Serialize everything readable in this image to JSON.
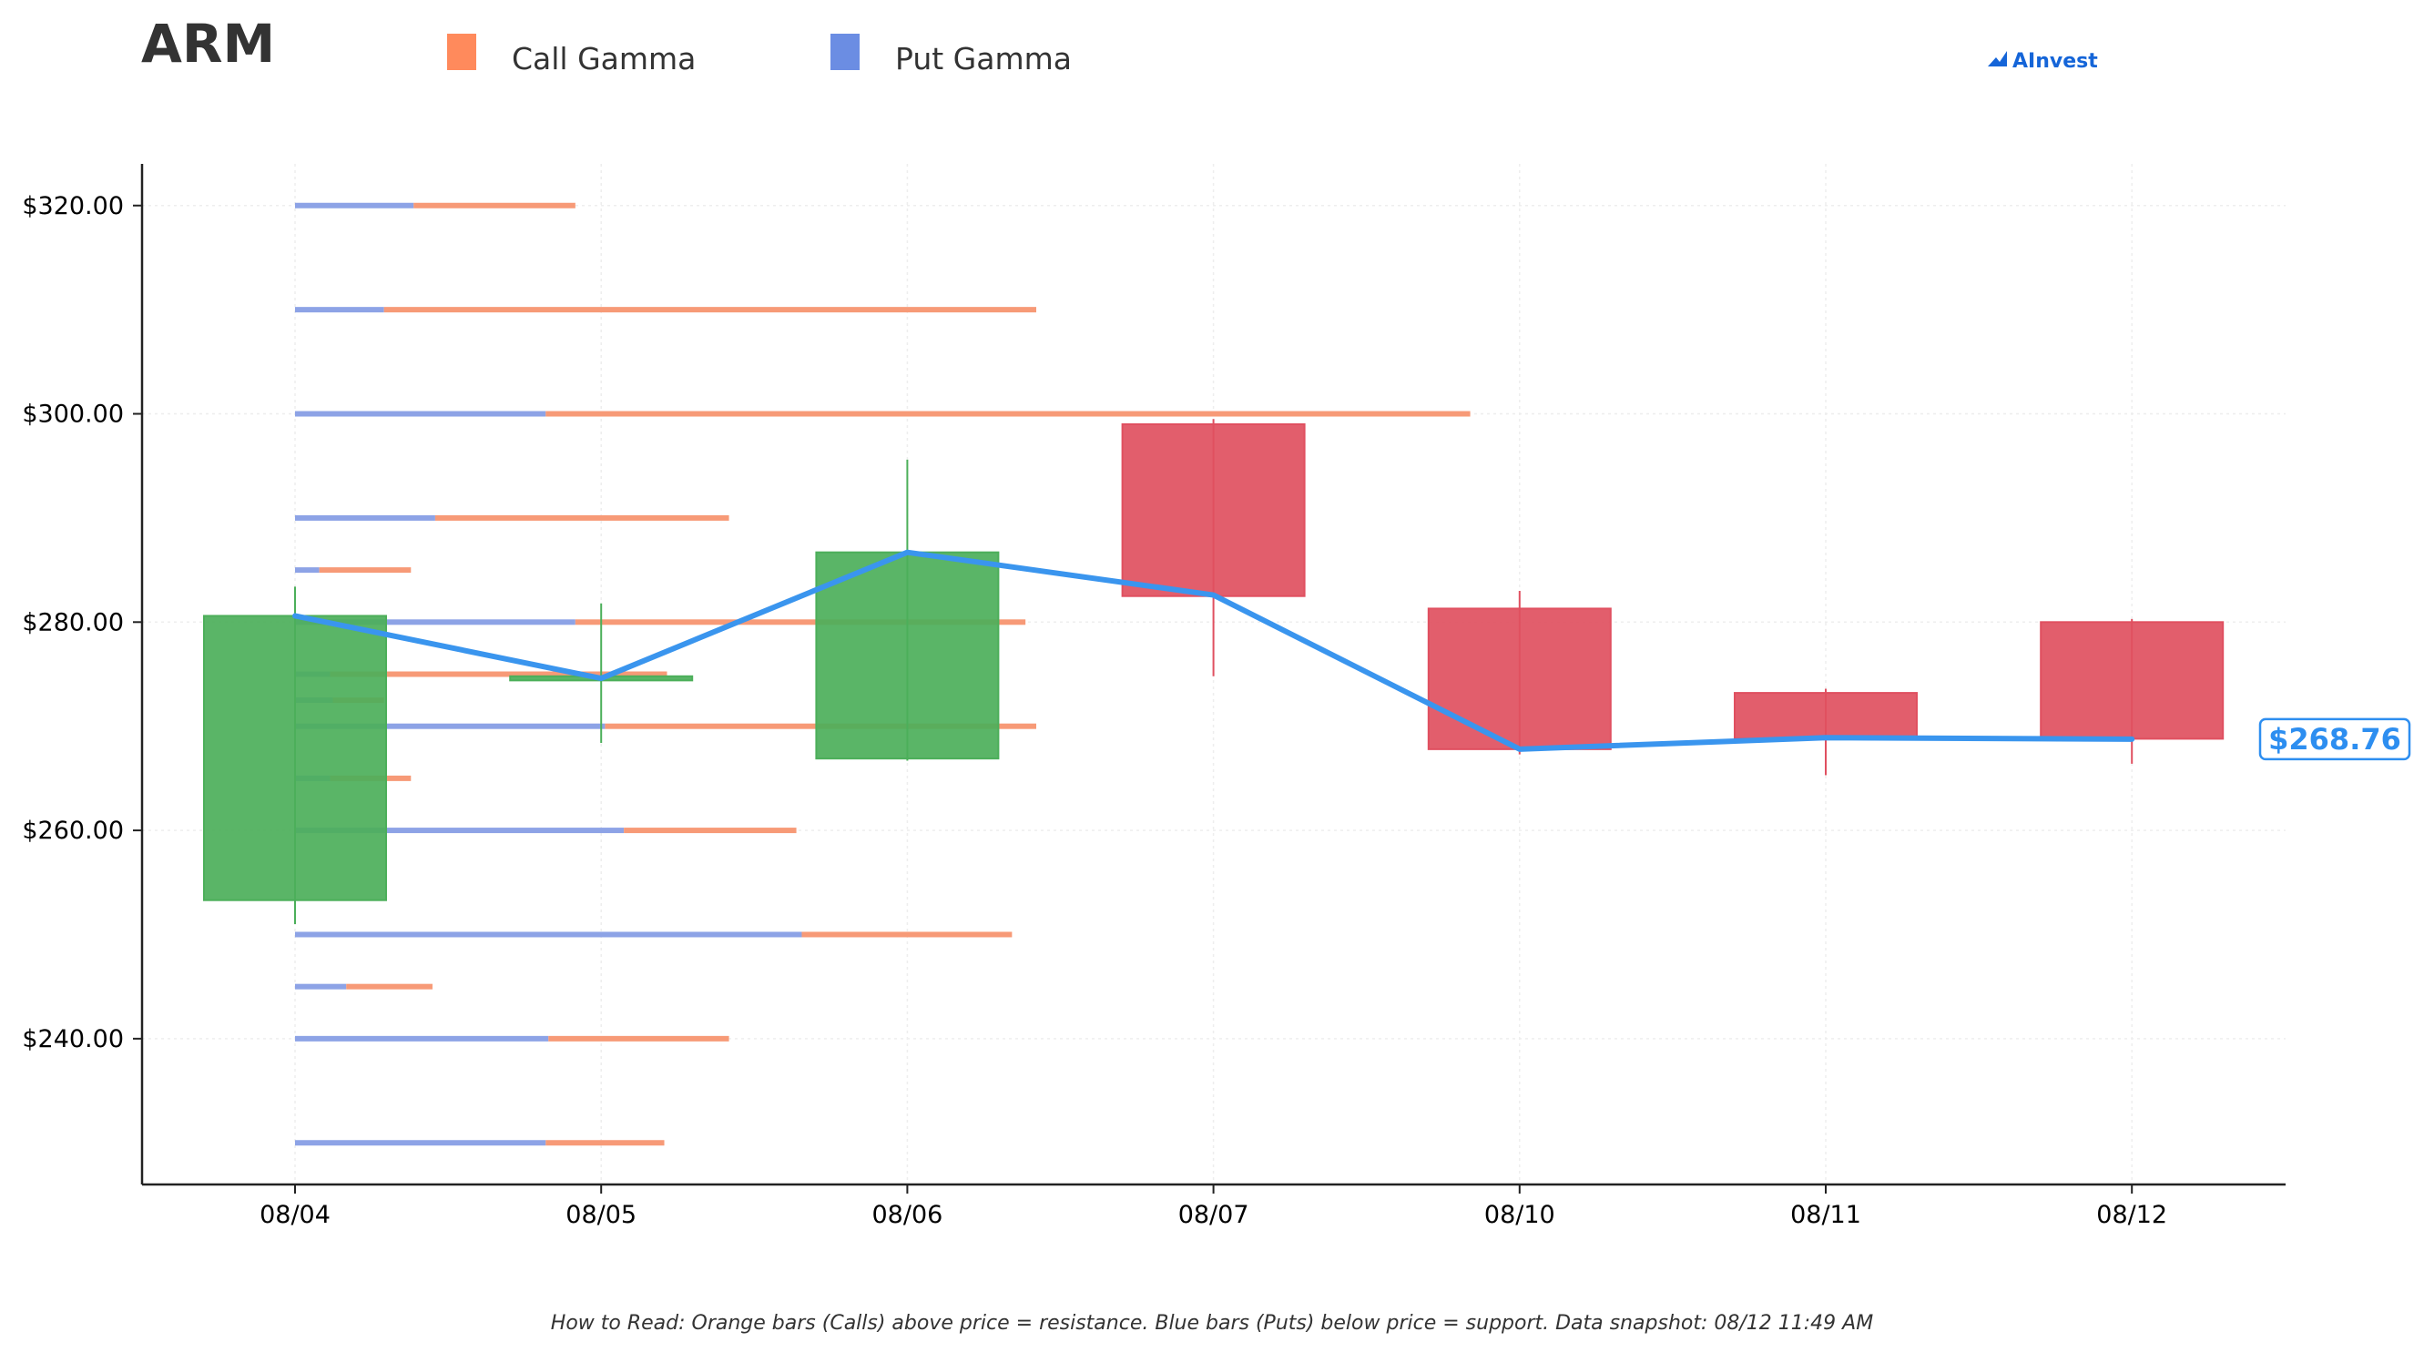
{
  "header": {
    "ticker": "ARM",
    "brand": "AInvest"
  },
  "legend": [
    {
      "label": "Call Gamma",
      "color": "#ff8a5c"
    },
    {
      "label": "Put Gamma",
      "color": "#6b8de3"
    }
  ],
  "footnote": "How to Read: Orange bars (Calls) above price = resistance. Blue bars (Puts) below price = support. Data snapshot: 08/12 11:49 AM",
  "price_tag": "$268.76",
  "colors": {
    "call": "#f79a77",
    "put": "#8da3e6",
    "up_candle": "#4caf5a",
    "down_candle": "#e05060",
    "price_line": "#3a95ee",
    "axis": "#222222",
    "grid": "#eeeeee"
  },
  "chart_data": {
    "type": "candlestick",
    "title": "",
    "xlabel": "",
    "ylabel": "",
    "ylim": [
      226,
      324
    ],
    "y_ticks": [
      240,
      260,
      280,
      300,
      320
    ],
    "y_tick_labels": [
      "$240.00",
      "$260.00",
      "$280.00",
      "$300.00",
      "$320.00"
    ],
    "categories": [
      "08/04",
      "08/05",
      "08/06",
      "08/07",
      "08/10",
      "08/11",
      "08/12"
    ],
    "grid": true,
    "legend_position": "top",
    "candles": [
      {
        "date": "08/04",
        "open": 253.3,
        "high": 283.4,
        "low": 251.0,
        "close": 280.6
      },
      {
        "date": "08/05",
        "open": 274.4,
        "high": 281.8,
        "low": 268.4,
        "close": 274.8
      },
      {
        "date": "08/06",
        "open": 266.9,
        "high": 295.6,
        "low": 266.7,
        "close": 286.7
      },
      {
        "date": "08/07",
        "open": 299.0,
        "high": 299.5,
        "low": 274.8,
        "close": 282.5
      },
      {
        "date": "08/10",
        "open": 281.3,
        "high": 283.0,
        "low": 267.3,
        "close": 267.8
      },
      {
        "date": "08/11",
        "open": 273.2,
        "high": 273.6,
        "low": 265.3,
        "close": 268.8
      },
      {
        "date": "08/12",
        "open": 280.0,
        "high": 280.3,
        "low": 266.4,
        "close": 268.8
      }
    ],
    "price_line": [
      {
        "date": "08/04",
        "value": 280.6
      },
      {
        "date": "08/05",
        "value": 274.6
      },
      {
        "date": "08/06",
        "value": 286.7
      },
      {
        "date": "08/07",
        "value": 282.6
      },
      {
        "date": "08/10",
        "value": 267.8
      },
      {
        "date": "08/11",
        "value": 268.9
      },
      {
        "date": "08/12",
        "value": 268.76
      }
    ],
    "gamma_bars": [
      {
        "strike": 230,
        "put": 0.186,
        "call": 0.088
      },
      {
        "strike": 240,
        "put": 0.188,
        "call": 0.134
      },
      {
        "strike": 245,
        "put": 0.038,
        "call": 0.064
      },
      {
        "strike": 250,
        "put": 0.376,
        "call": 0.156
      },
      {
        "strike": 260,
        "put": 0.244,
        "call": 0.128
      },
      {
        "strike": 265,
        "put": 0.026,
        "call": 0.06
      },
      {
        "strike": 270,
        "put": 0.23,
        "call": 0.32
      },
      {
        "strike": 272.5,
        "put": 0.028,
        "call": 0.038
      },
      {
        "strike": 275,
        "put": 0.026,
        "call": 0.25
      },
      {
        "strike": 280,
        "put": 0.208,
        "call": 0.334
      },
      {
        "strike": 285,
        "put": 0.018,
        "call": 0.068
      },
      {
        "strike": 290,
        "put": 0.104,
        "call": 0.218
      },
      {
        "strike": 300,
        "put": 0.186,
        "call": 0.686
      },
      {
        "strike": 310,
        "put": 0.066,
        "call": 0.484
      },
      {
        "strike": 320,
        "put": 0.088,
        "call": 0.12
      }
    ]
  }
}
